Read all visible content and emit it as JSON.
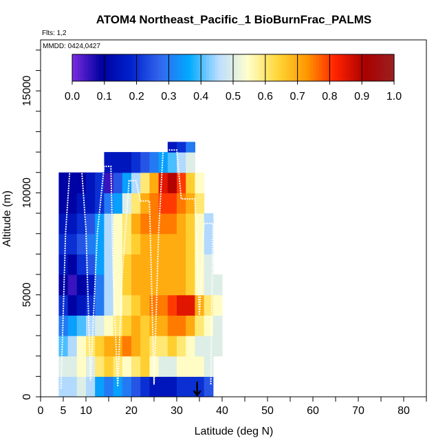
{
  "chart_data": {
    "type": "heatmap",
    "title": "ATOM4 Northeast_Pacific_1 BioBurnFrac_PALMS",
    "flights_label": "Flts: 1,2",
    "dates_label": "MMDD: 0424,0427",
    "xlabel": "Latitude (deg N)",
    "ylabel": "Altitude (m)",
    "xlim": [
      0,
      85
    ],
    "ylim": [
      0,
      17500
    ],
    "x_ticks": [
      0,
      5,
      10,
      20,
      30,
      40,
      50,
      60,
      70,
      80
    ],
    "x_tick_labels": [
      "0",
      "5",
      "10",
      "20",
      "30",
      "40",
      "50",
      "60",
      "70",
      "80"
    ],
    "y_ticks": [
      0,
      5000,
      10000,
      15000
    ],
    "y_tick_labels": [
      "0",
      "5000",
      "10000",
      "15000"
    ],
    "colorbar": {
      "range": [
        0,
        1
      ],
      "tick_labels": [
        "0.0",
        "0.1",
        "0.2",
        "0.3",
        "0.4",
        "0.5",
        "0.6",
        "0.7",
        "0.8",
        "0.9",
        "1.0"
      ],
      "stops": [
        "#7b2ce0",
        "#0000a0",
        "#0022cc",
        "#3366ee",
        "#00aaff",
        "#bbddff",
        "#ffffcc",
        "#ffd83a",
        "#ff9900",
        "#ff2200",
        "#aa0000",
        "#9a2020"
      ]
    },
    "x_bin_edges": [
      4,
      6,
      8,
      10,
      12,
      14,
      16,
      18,
      20,
      22,
      24,
      26,
      28,
      30,
      32,
      34,
      36,
      38,
      40
    ],
    "altitude_bins": [
      {
        "alt_range": [
          0,
          1000
        ],
        "values": [
          0.45,
          0.45,
          0.5,
          0.45,
          0.35,
          0.3,
          0.35,
          0.3,
          0.25,
          0.2,
          0.15,
          0.15,
          0.15,
          0.2,
          0.2,
          0.2,
          0.25,
          null
        ]
      },
      {
        "alt_range": [
          1000,
          2000
        ],
        "values": [
          0.5,
          0.5,
          0.55,
          0.5,
          0.6,
          0.65,
          0.6,
          0.55,
          0.6,
          0.65,
          0.55,
          0.5,
          0.5,
          0.55,
          0.55,
          0.55,
          0.5,
          null
        ]
      },
      {
        "alt_range": [
          2000,
          3000
        ],
        "values": [
          0.4,
          0.45,
          0.55,
          0.6,
          0.65,
          0.7,
          0.7,
          0.75,
          0.7,
          0.65,
          0.6,
          0.6,
          0.65,
          0.6,
          0.55,
          0.5,
          0.5,
          0.5
        ]
      },
      {
        "alt_range": [
          3000,
          4000
        ],
        "values": [
          0.3,
          0.35,
          0.4,
          0.45,
          0.5,
          0.55,
          0.6,
          0.65,
          0.7,
          0.65,
          0.7,
          0.7,
          0.75,
          0.75,
          0.7,
          0.6,
          0.55,
          0.5
        ]
      },
      {
        "alt_range": [
          4000,
          5000
        ],
        "values": [
          0.2,
          0.1,
          0.15,
          0.2,
          0.3,
          0.45,
          0.55,
          0.6,
          0.65,
          0.7,
          0.75,
          0.75,
          0.8,
          0.85,
          0.85,
          0.7,
          0.6,
          0.55
        ]
      },
      {
        "alt_range": [
          5000,
          6000
        ],
        "values": [
          0.1,
          0.05,
          0.1,
          0.15,
          0.3,
          0.45,
          0.55,
          0.65,
          0.7,
          0.7,
          0.7,
          0.7,
          0.7,
          0.7,
          0.65,
          0.55,
          0.5,
          0.5
        ]
      },
      {
        "alt_range": [
          6000,
          7000
        ],
        "values": [
          0.15,
          0.1,
          0.2,
          0.25,
          0.35,
          0.45,
          0.55,
          0.65,
          0.7,
          0.7,
          0.7,
          0.7,
          0.7,
          0.7,
          0.65,
          0.55,
          0.5,
          null
        ]
      },
      {
        "alt_range": [
          7000,
          8000
        ],
        "values": [
          0.2,
          0.2,
          0.25,
          0.3,
          0.35,
          0.45,
          0.55,
          0.6,
          0.65,
          0.7,
          0.7,
          0.7,
          0.7,
          0.7,
          0.65,
          0.55,
          0.45,
          null
        ]
      },
      {
        "alt_range": [
          8000,
          9000
        ],
        "values": [
          0.15,
          0.15,
          0.2,
          0.25,
          0.35,
          0.45,
          0.55,
          0.6,
          0.7,
          0.75,
          0.75,
          0.75,
          0.75,
          0.7,
          0.65,
          0.55,
          0.45,
          null
        ]
      },
      {
        "alt_range": [
          9000,
          10000
        ],
        "values": [
          0.1,
          0.1,
          0.15,
          0.15,
          0.2,
          0.3,
          0.35,
          0.5,
          0.6,
          0.7,
          0.75,
          0.8,
          0.8,
          0.75,
          0.7,
          0.6,
          null,
          null
        ]
      },
      {
        "alt_range": [
          10000,
          11000
        ],
        "values": [
          0.1,
          0.1,
          0.1,
          0.15,
          0.2,
          0.05,
          0.25,
          0.35,
          0.45,
          0.6,
          0.7,
          0.85,
          0.9,
          0.8,
          0.65,
          0.55,
          null,
          null
        ]
      },
      {
        "alt_range": [
          11000,
          12000
        ],
        "values": [
          null,
          null,
          null,
          null,
          null,
          0.15,
          0.15,
          0.15,
          0.2,
          0.25,
          0.3,
          0.35,
          0.4,
          0.45,
          0.5,
          null,
          null,
          null
        ]
      },
      {
        "alt_range": [
          12000,
          12500
        ],
        "values": [
          null,
          null,
          null,
          null,
          null,
          null,
          null,
          null,
          null,
          null,
          null,
          null,
          0.15,
          0.2,
          0.3,
          null,
          null,
          null
        ]
      }
    ],
    "flight_track": [
      [
        4.5,
        400
      ],
      [
        5.5,
        8000
      ],
      [
        6.5,
        11300
      ],
      [
        9,
        11300
      ],
      [
        10,
        8200
      ],
      [
        11,
        800
      ],
      [
        12.5,
        8000
      ],
      [
        14,
        11300
      ],
      [
        15.5,
        11300
      ],
      [
        16,
        6000
      ],
      [
        17,
        500
      ],
      [
        18,
        6000
      ],
      [
        19.5,
        10600
      ],
      [
        21,
        10600
      ],
      [
        22,
        9600
      ],
      [
        24,
        9600
      ],
      [
        25,
        600
      ],
      [
        26,
        8000
      ],
      [
        27,
        12100
      ],
      [
        30,
        12100
      ],
      [
        31,
        9700
      ],
      [
        34,
        9700
      ],
      [
        35,
        4000
      ],
      [
        36,
        8500
      ],
      [
        38,
        8500
      ],
      [
        37.5,
        600
      ]
    ],
    "marker": {
      "type": "down-arrow",
      "x": 34.5,
      "y": 0
    }
  }
}
